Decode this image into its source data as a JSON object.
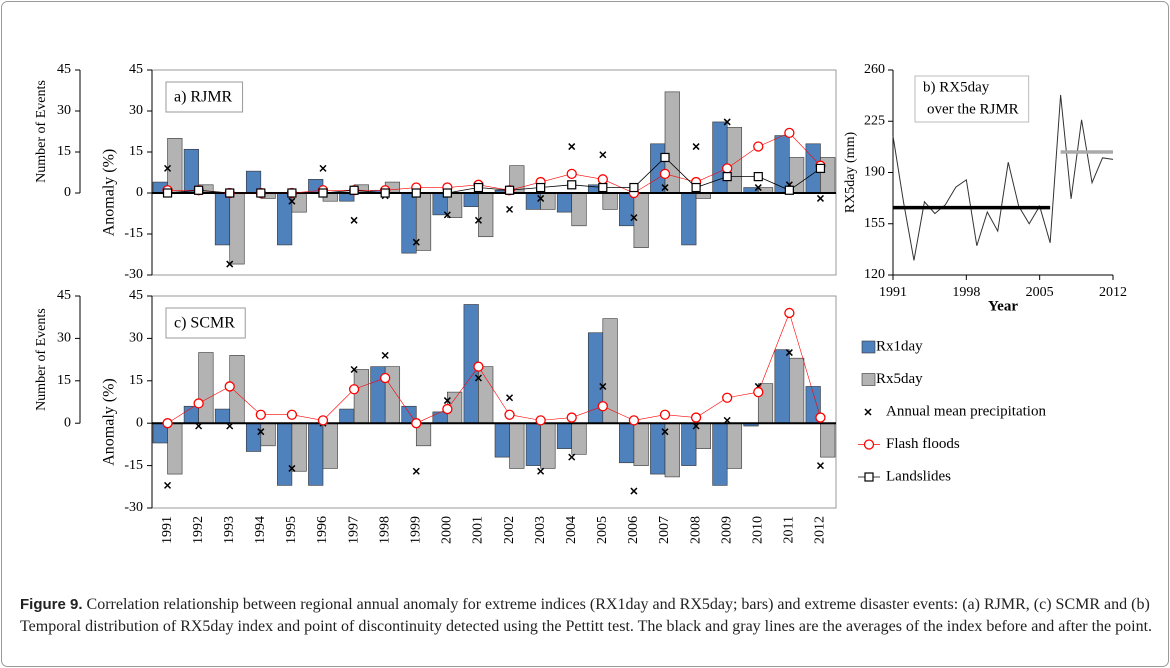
{
  "chart_data": [
    {
      "type": "bar",
      "title": "a) RJMR",
      "ylabel": "Anomaly (%)",
      "y2label": "Number of Events",
      "categories": [
        null,
        null,
        null,
        null,
        null,
        null,
        null,
        null,
        null,
        null,
        null,
        null,
        null,
        null,
        null,
        null,
        null,
        null,
        null,
        null,
        null,
        null
      ],
      "ylim": [
        -30,
        45
      ],
      "yticks": [
        -30,
        -15,
        0,
        15,
        30,
        45
      ],
      "y2lim": [
        -30,
        45
      ],
      "y2ticks": [
        0,
        15,
        30,
        45
      ],
      "series": [
        {
          "name": "Rx1day",
          "color": "#4f81bd",
          "mark": "bar",
          "values": [
            4,
            16,
            -19,
            8,
            -19,
            5,
            -3,
            1,
            -22,
            -8,
            -5,
            1,
            -6,
            -7,
            3,
            -12,
            18,
            -19,
            26,
            2,
            21,
            18
          ]
        },
        {
          "name": "Rx5day",
          "color": "#b3b3b3",
          "mark": "bar",
          "values": [
            20,
            3,
            -26,
            -2,
            -7,
            -3,
            3,
            4,
            -21,
            -9,
            -16,
            10,
            -6,
            -12,
            -6,
            -20,
            37,
            -2,
            24,
            2,
            13,
            13
          ]
        },
        {
          "name": "Annual mean precipitation",
          "color": "#000000",
          "mark": "cross",
          "values": [
            9,
            1,
            -26,
            0,
            -3,
            9,
            -10,
            -1,
            -18,
            -8,
            -10,
            -6,
            -2,
            17,
            14,
            -9,
            2,
            17,
            26,
            2,
            3,
            -2
          ]
        },
        {
          "name": "Flash floods",
          "color": "#ff0000",
          "mark": "circle",
          "axis": "y2",
          "values": [
            1,
            1,
            0,
            0,
            0,
            1,
            1,
            1,
            2,
            2,
            3,
            1,
            4,
            7,
            5,
            0,
            7,
            4,
            9,
            17,
            22,
            10
          ]
        },
        {
          "name": "Landslides",
          "color": "#000000",
          "mark": "square",
          "axis": "y2",
          "values": [
            0,
            1,
            0,
            0,
            0,
            0,
            1,
            0,
            0,
            0,
            2,
            1,
            2,
            3,
            2,
            2,
            13,
            2,
            6,
            6,
            1,
            9
          ]
        }
      ]
    },
    {
      "type": "line",
      "title": [
        "b) RX5day",
        "over the RJMR"
      ],
      "xlabel": "Year",
      "ylabel": "RX5day (mm)",
      "x": [
        1991,
        1992,
        1993,
        1994,
        1995,
        1996,
        1997,
        1998,
        1999,
        2000,
        2001,
        2002,
        2003,
        2004,
        2005,
        2006,
        2007,
        2008,
        2009,
        2010,
        2011,
        2012
      ],
      "values": [
        215,
        170,
        130,
        170,
        162,
        168,
        180,
        185,
        140,
        163,
        150,
        197,
        167,
        155,
        167,
        142,
        243,
        172,
        226,
        183,
        200,
        199
      ],
      "color": "#333333",
      "xlim": [
        1991,
        2012
      ],
      "xticks": [
        1991,
        1998,
        2005,
        2012
      ],
      "ylim": [
        120,
        260
      ],
      "yticks": [
        120,
        155,
        190,
        225,
        260
      ],
      "means": [
        {
          "x": [
            1991,
            2006
          ],
          "value": 166,
          "color": "#000000"
        },
        {
          "x": [
            2007,
            2012
          ],
          "value": 204,
          "color": "#aaaaaa"
        }
      ]
    },
    {
      "type": "bar",
      "title": "c) SCMR",
      "ylabel": "Anomaly (%)",
      "y2label": "Number of Events",
      "categories": [
        "1991",
        "1992",
        "1993",
        "1994",
        "1995",
        "1996",
        "1997",
        "1998",
        "1999",
        "2000",
        "2001",
        "2002",
        "2003",
        "2004",
        "2005",
        "2006",
        "2007",
        "2008",
        "2009",
        "2010",
        "2011",
        "2012"
      ],
      "ylim": [
        -30,
        45
      ],
      "yticks": [
        -30,
        -15,
        0,
        15,
        30,
        45
      ],
      "y2lim": [
        -30,
        45
      ],
      "y2ticks": [
        0,
        15,
        30,
        45
      ],
      "series": [
        {
          "color": "#4f81bd",
          "mark": "bar",
          "values": [
            -7,
            6,
            5,
            -10,
            -22,
            -22,
            5,
            20,
            6,
            4,
            42,
            -12,
            -15,
            -9,
            32,
            -14,
            -18,
            -15,
            -22,
            -1,
            26,
            13
          ]
        },
        {
          "color": "#b3b3b3",
          "mark": "bar",
          "values": [
            -18,
            25,
            24,
            -8,
            -17,
            -16,
            19,
            20,
            -8,
            11,
            20,
            -16,
            -16,
            -11,
            37,
            -15,
            -19,
            -9,
            -16,
            14,
            23,
            -12
          ]
        },
        {
          "color": "#000000",
          "mark": "cross",
          "values": [
            -22,
            -1,
            -1,
            -3,
            -16,
            0,
            19,
            24,
            -17,
            8,
            16,
            9,
            -17,
            -12,
            13,
            -24,
            -3,
            -1,
            1,
            13,
            25,
            -15
          ]
        },
        {
          "color": "#ff0000",
          "mark": "circle",
          "axis": "y2",
          "values": [
            0,
            7,
            13,
            3,
            3,
            1,
            12,
            16,
            0,
            5,
            20,
            3,
            1,
            2,
            6,
            1,
            3,
            2,
            9,
            11,
            39,
            2
          ]
        }
      ]
    }
  ],
  "caption": {
    "label": "Figure 9.",
    "text": "Correlation relationship between regional annual anomaly for extreme indices (RX1day and RX5day; bars) and extreme disaster events: (a) RJMR, (c) SCMR and (b) Temporal distribution of RX5day index and point of discontinuity detected using the Pettitt test. The black and gray lines are the averages of the index before and after the point."
  }
}
